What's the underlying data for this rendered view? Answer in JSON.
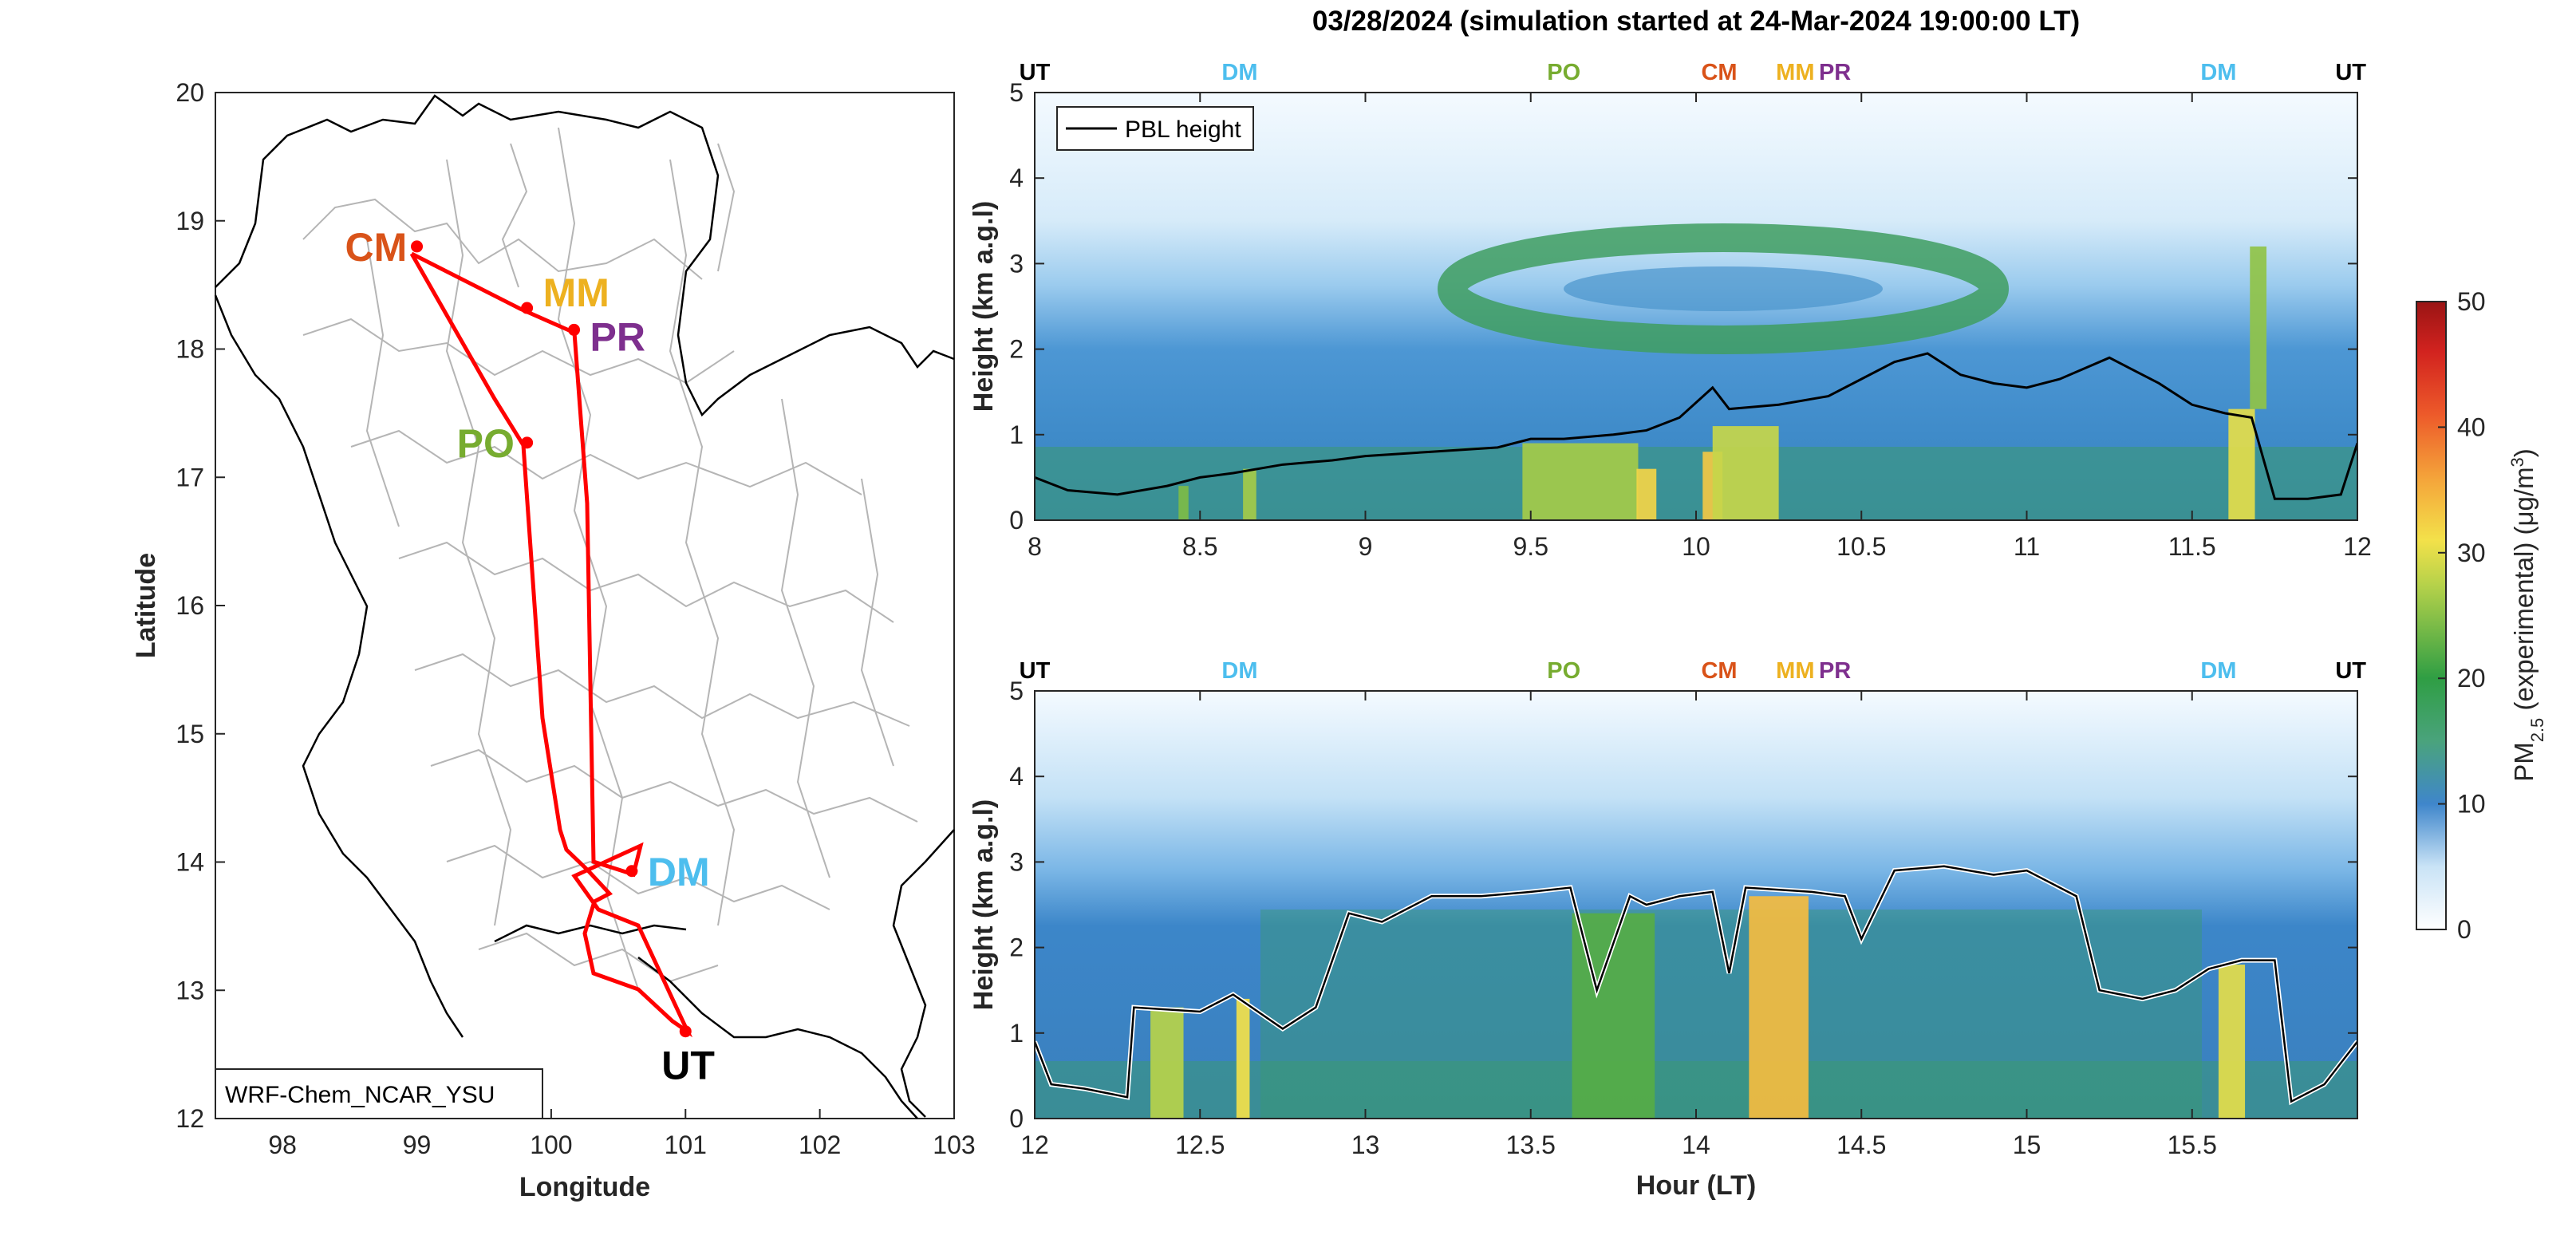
{
  "figure_title": "03/28/2024 (simulation started at 24-Mar-2024 19:00:00 LT)",
  "map": {
    "xlabel": "Longitude",
    "ylabel": "Latitude",
    "xticks": [
      "98",
      "99",
      "100",
      "101",
      "102",
      "103"
    ],
    "yticks": [
      "12",
      "13",
      "14",
      "15",
      "16",
      "17",
      "18",
      "19",
      "20"
    ],
    "model_label": "WRF-Chem_NCAR_YSU",
    "sites": [
      {
        "name": "CM",
        "lon": 99.0,
        "lat": 18.8,
        "color": "#d95319"
      },
      {
        "name": "MM",
        "lon": 99.82,
        "lat": 18.32,
        "color": "#edb120"
      },
      {
        "name": "PR",
        "lon": 100.17,
        "lat": 18.15,
        "color": "#7e2f8e"
      },
      {
        "name": "PO",
        "lon": 99.82,
        "lat": 17.27,
        "color": "#77ac30"
      },
      {
        "name": "DM",
        "lon": 100.6,
        "lat": 13.93,
        "color": "#4dbeee"
      },
      {
        "name": "UT",
        "lon": 101.0,
        "lat": 12.68,
        "color": "#000000"
      }
    ],
    "route_color": "#ff0000"
  },
  "colorbar": {
    "label_prefix": "PM",
    "label_sub": "2.5",
    "label_suffix": " (experimental) (μg/m",
    "label_sup": "3",
    "label_end": ")",
    "ticks": [
      "0",
      "10",
      "20",
      "30",
      "40",
      "50"
    ]
  },
  "chart_data": [
    {
      "type": "heatmap",
      "xlabel": "",
      "ylabel": "Height (km a.g.l)",
      "xlim": [
        8,
        12
      ],
      "ylim": [
        0,
        5
      ],
      "xticks": [
        "8",
        "8.5",
        "9",
        "9.5",
        "10",
        "10.5",
        "11",
        "11.5",
        "12"
      ],
      "yticks": [
        "0",
        "1",
        "2",
        "3",
        "4",
        "5"
      ],
      "legend": "PBL height",
      "legend_position": "top-left",
      "site_markers": [
        {
          "name": "UT",
          "hour": 8.0,
          "color": "#000000"
        },
        {
          "name": "DM",
          "hour": 8.62,
          "color": "#4dbeee"
        },
        {
          "name": "PO",
          "hour": 9.6,
          "color": "#77ac30"
        },
        {
          "name": "CM",
          "hour": 10.07,
          "color": "#d95319"
        },
        {
          "name": "MM",
          "hour": 10.3,
          "color": "#edb120"
        },
        {
          "name": "PR",
          "hour": 10.42,
          "color": "#7e2f8e"
        },
        {
          "name": "DM",
          "hour": 11.58,
          "color": "#4dbeee"
        },
        {
          "name": "UT",
          "hour": 11.98,
          "color": "#000000"
        }
      ],
      "pbl_height": {
        "hours": [
          8.0,
          8.1,
          8.25,
          8.4,
          8.5,
          8.6,
          8.75,
          8.9,
          9.0,
          9.2,
          9.4,
          9.5,
          9.6,
          9.75,
          9.85,
          9.95,
          10.05,
          10.1,
          10.25,
          10.4,
          10.5,
          10.6,
          10.7,
          10.8,
          10.9,
          11.0,
          11.1,
          11.25,
          11.4,
          11.5,
          11.6,
          11.68,
          11.75,
          11.85,
          11.95,
          12.0
        ],
        "km": [
          0.5,
          0.35,
          0.3,
          0.4,
          0.5,
          0.55,
          0.65,
          0.7,
          0.75,
          0.8,
          0.85,
          0.95,
          0.95,
          1.0,
          1.05,
          1.2,
          1.55,
          1.3,
          1.35,
          1.45,
          1.65,
          1.85,
          1.95,
          1.7,
          1.6,
          1.55,
          1.65,
          1.9,
          1.6,
          1.35,
          1.25,
          1.2,
          0.25,
          0.25,
          0.3,
          0.9
        ]
      },
      "pm25_features": [
        {
          "hour": 9.65,
          "width": 0.35,
          "base_km": 0.0,
          "top_km": 0.9,
          "value": 26
        },
        {
          "hour": 9.85,
          "width": 0.06,
          "base_km": 0.0,
          "top_km": 0.6,
          "value": 32
        },
        {
          "hour": 10.05,
          "width": 0.06,
          "base_km": 0.0,
          "top_km": 0.8,
          "value": 33
        },
        {
          "hour": 10.15,
          "width": 0.2,
          "base_km": 0.0,
          "top_km": 1.1,
          "value": 28
        },
        {
          "hour": 11.65,
          "width": 0.08,
          "base_km": 0.0,
          "top_km": 1.3,
          "value": 30
        },
        {
          "hour": 11.7,
          "width": 0.05,
          "base_km": 1.3,
          "top_km": 3.2,
          "value": 25
        },
        {
          "hour": 8.65,
          "width": 0.04,
          "base_km": 0.0,
          "top_km": 0.6,
          "value": 26
        },
        {
          "hour": 8.45,
          "width": 0.03,
          "base_km": 0.0,
          "top_km": 0.4,
          "value": 24
        }
      ]
    },
    {
      "type": "heatmap",
      "xlabel": "Hour (LT)",
      "ylabel": "Height (km a.g.l)",
      "xlim": [
        12,
        16
      ],
      "ylim": [
        0,
        5
      ],
      "xticks": [
        "12",
        "12.5",
        "13",
        "13.5",
        "14",
        "14.5",
        "15",
        "15.5"
      ],
      "yticks": [
        "0",
        "1",
        "2",
        "3",
        "4",
        "5"
      ],
      "site_markers": [
        {
          "name": "UT",
          "hour": 12.0,
          "color": "#000000"
        },
        {
          "name": "DM",
          "hour": 12.62,
          "color": "#4dbeee"
        },
        {
          "name": "PO",
          "hour": 13.6,
          "color": "#77ac30"
        },
        {
          "name": "CM",
          "hour": 14.07,
          "color": "#d95319"
        },
        {
          "name": "MM",
          "hour": 14.3,
          "color": "#edb120"
        },
        {
          "name": "PR",
          "hour": 14.42,
          "color": "#7e2f8e"
        },
        {
          "name": "DM",
          "hour": 15.58,
          "color": "#4dbeee"
        },
        {
          "name": "UT",
          "hour": 15.98,
          "color": "#000000"
        }
      ],
      "pbl_height": {
        "hours": [
          12.0,
          12.05,
          12.15,
          12.28,
          12.3,
          12.5,
          12.6,
          12.75,
          12.85,
          12.95,
          13.05,
          13.2,
          13.35,
          13.5,
          13.62,
          13.7,
          13.8,
          13.85,
          13.95,
          14.05,
          14.1,
          14.15,
          14.35,
          14.45,
          14.5,
          14.6,
          14.75,
          14.9,
          15.0,
          15.15,
          15.22,
          15.35,
          15.45,
          15.55,
          15.65,
          15.75,
          15.8,
          15.9,
          16.0
        ],
        "km": [
          0.9,
          0.4,
          0.35,
          0.25,
          1.3,
          1.25,
          1.45,
          1.05,
          1.3,
          2.4,
          2.3,
          2.6,
          2.6,
          2.65,
          2.7,
          1.5,
          2.6,
          2.5,
          2.6,
          2.65,
          1.7,
          2.7,
          2.65,
          2.6,
          2.1,
          2.9,
          2.95,
          2.85,
          2.9,
          2.6,
          1.5,
          1.4,
          1.5,
          1.75,
          1.85,
          1.85,
          0.2,
          0.4,
          0.9
        ]
      },
      "pm25_features": [
        {
          "hour": 12.4,
          "width": 0.1,
          "base_km": 0.0,
          "top_km": 1.3,
          "value": 27
        },
        {
          "hour": 12.63,
          "width": 0.04,
          "base_km": 0.0,
          "top_km": 1.4,
          "value": 31
        },
        {
          "hour": 13.75,
          "width": 0.25,
          "base_km": 0.0,
          "top_km": 2.4,
          "value": 22
        },
        {
          "hour": 14.25,
          "width": 0.18,
          "base_km": 0.0,
          "top_km": 2.6,
          "value": 34
        },
        {
          "hour": 15.62,
          "width": 0.08,
          "base_km": 0.0,
          "top_km": 1.8,
          "value": 30
        }
      ]
    }
  ]
}
